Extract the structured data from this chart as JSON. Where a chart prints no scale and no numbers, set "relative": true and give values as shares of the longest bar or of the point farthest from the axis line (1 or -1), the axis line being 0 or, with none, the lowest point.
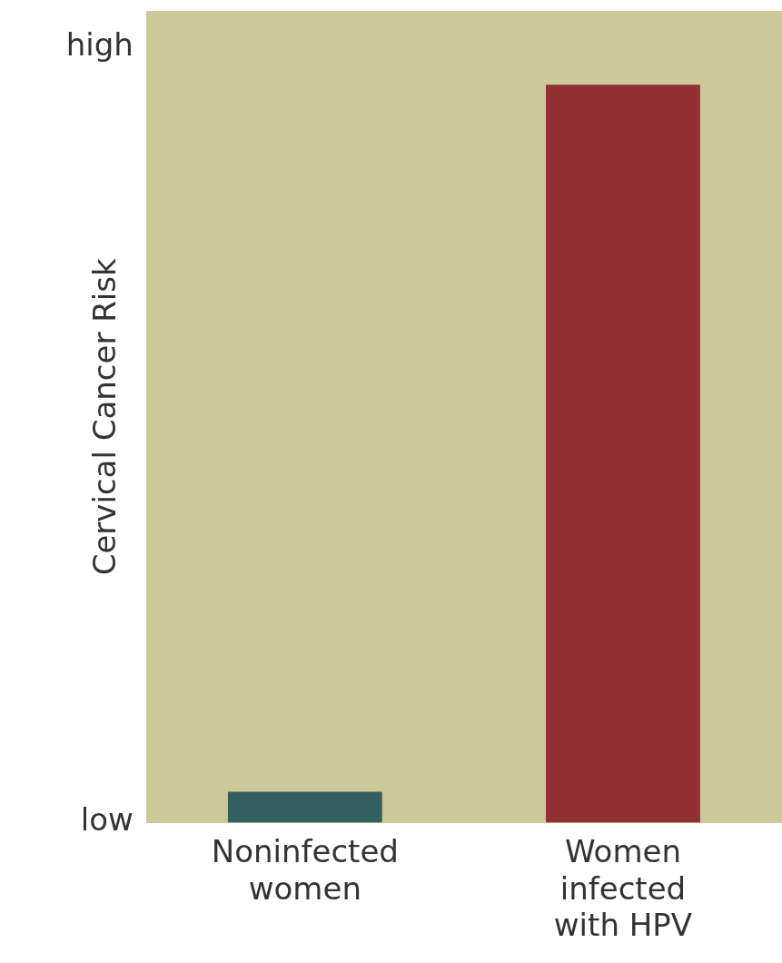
{
  "chart_data": {
    "type": "bar",
    "ylabel": "Cervical Cancer Risk",
    "categories": [
      "Noninfected women",
      "Women infected with HPV"
    ],
    "values": [
      0.042,
      1
    ],
    "colors": [
      "#33605f",
      "#922f33"
    ],
    "relative": true,
    "annotations": [
      "low",
      "high"
    ],
    "grid": false,
    "legend": false
  }
}
